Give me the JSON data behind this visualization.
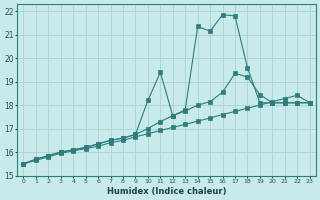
{
  "xlabel": "Humidex (Indice chaleur)",
  "background_color": "#c8eaea",
  "grid_color": "#b0d4d4",
  "line_color": "#2e7d7d",
  "xlim": [
    -0.5,
    23.5
  ],
  "ylim": [
    15,
    22.3
  ],
  "xticks": [
    0,
    1,
    2,
    3,
    4,
    5,
    6,
    7,
    8,
    9,
    10,
    11,
    12,
    13,
    14,
    15,
    16,
    17,
    18,
    19,
    20,
    21,
    22,
    23
  ],
  "yticks": [
    15,
    16,
    17,
    18,
    19,
    20,
    21,
    22
  ],
  "line1_x": [
    0,
    1,
    2,
    3,
    4,
    5,
    6,
    7,
    8,
    9,
    10,
    11,
    12,
    13,
    14,
    15,
    16,
    17,
    18,
    19,
    20,
    21,
    22,
    23
  ],
  "line1_y": [
    15.5,
    15.7,
    15.85,
    16.0,
    16.1,
    16.2,
    16.35,
    16.5,
    16.6,
    16.75,
    18.2,
    19.4,
    17.55,
    17.8,
    21.35,
    21.15,
    21.85,
    21.8,
    19.6,
    18.1,
    18.1,
    18.1,
    18.1,
    18.1
  ],
  "line2_x": [
    0,
    1,
    2,
    3,
    4,
    5,
    6,
    7,
    8,
    9,
    10,
    11,
    12,
    13,
    14,
    15,
    16,
    17,
    18,
    19,
    20,
    21,
    22,
    23
  ],
  "line2_y": [
    15.5,
    15.7,
    15.85,
    16.0,
    16.1,
    16.2,
    16.35,
    16.5,
    16.6,
    16.75,
    17.0,
    17.3,
    17.55,
    17.75,
    18.0,
    18.15,
    18.55,
    19.35,
    19.2,
    18.45,
    18.1,
    18.1,
    18.1,
    18.1
  ],
  "line3_x": [
    0,
    1,
    2,
    3,
    4,
    5,
    6,
    7,
    8,
    9,
    10,
    11,
    12,
    13,
    14,
    15,
    16,
    17,
    18,
    19,
    20,
    21,
    22,
    23
  ],
  "line3_y": [
    15.5,
    15.65,
    15.8,
    15.95,
    16.05,
    16.15,
    16.25,
    16.4,
    16.5,
    16.65,
    16.78,
    16.92,
    17.05,
    17.18,
    17.32,
    17.45,
    17.6,
    17.73,
    17.87,
    18.0,
    18.15,
    18.28,
    18.42,
    18.1
  ]
}
